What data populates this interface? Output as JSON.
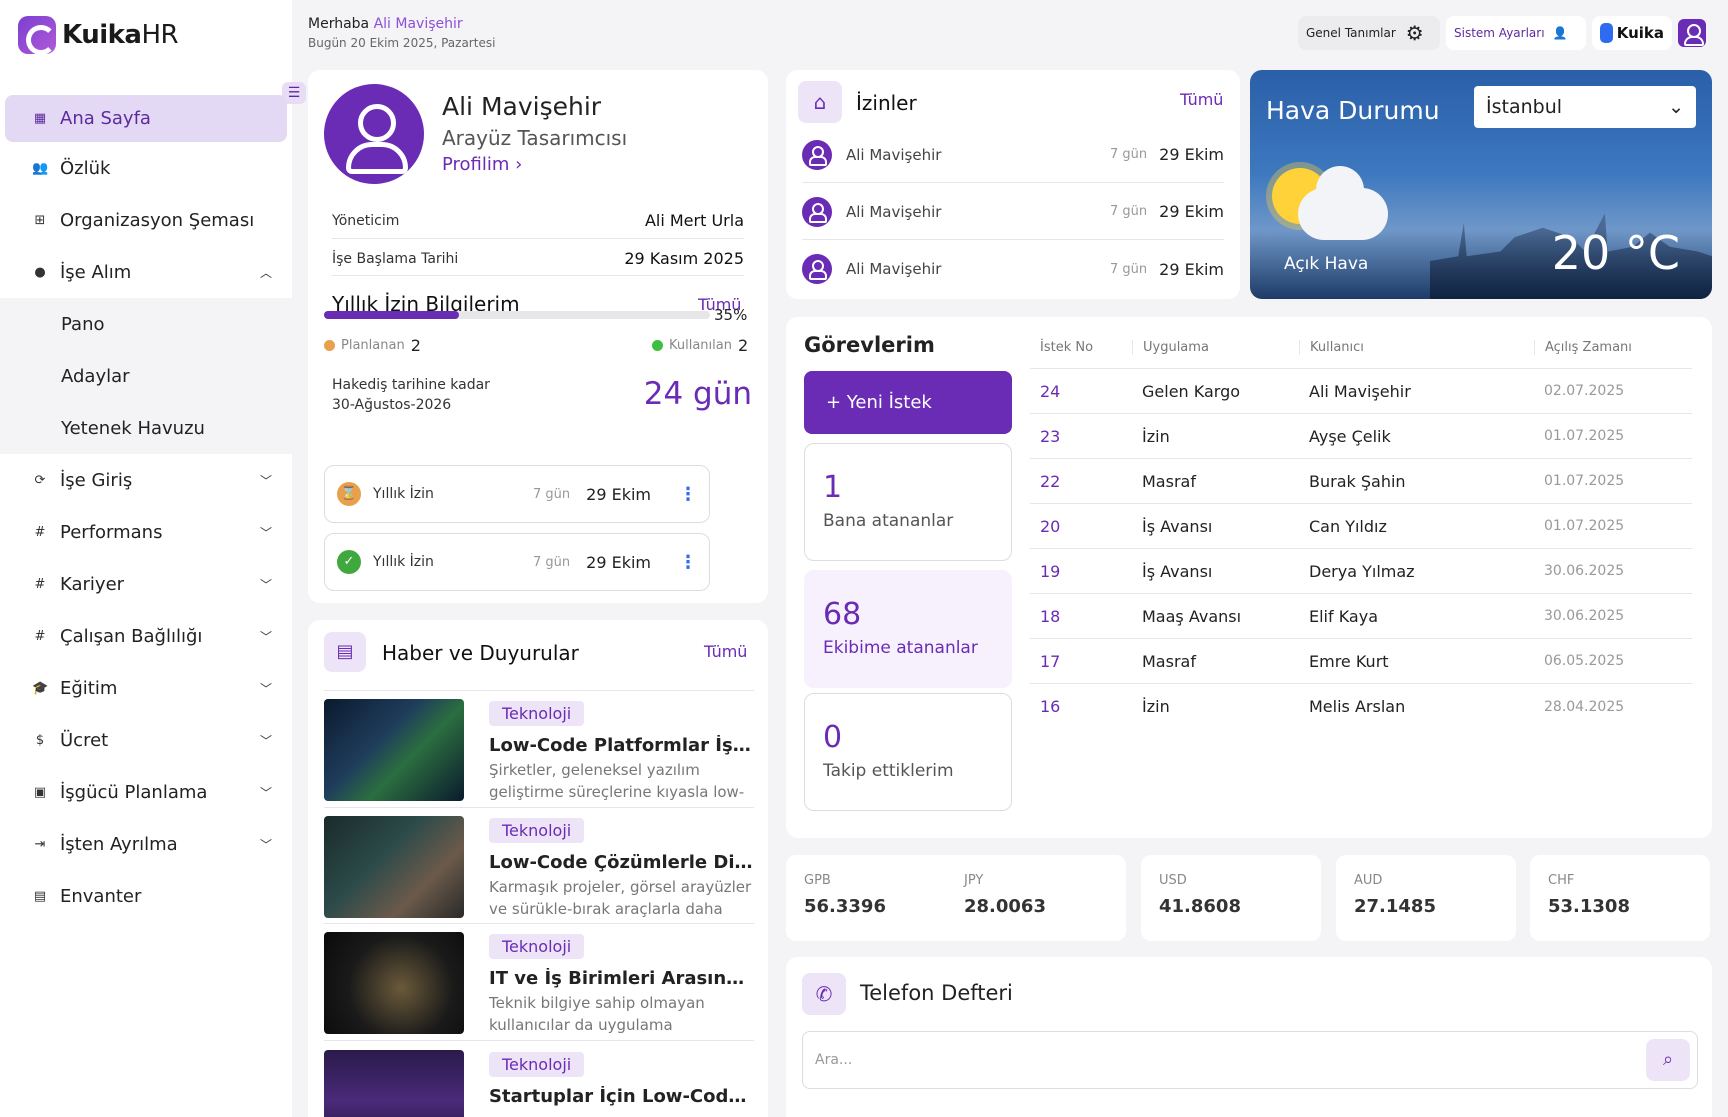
{
  "brand": {
    "name_bold": "Kuika",
    "name_light": "HR"
  },
  "header": {
    "greeting": "Merhaba",
    "user_name": "Ali Mavişehir",
    "date": "Bugün 20 Ekim 2025, Pazartesi",
    "general_definitions": "Genel Tanımlar",
    "system_settings": "Sistem Ayarları",
    "kuika": "Kuika"
  },
  "sidebar": {
    "items": [
      {
        "label": "Ana Sayfa",
        "icon": "grid-icon"
      },
      {
        "label": "Özlük",
        "icon": "people-icon"
      },
      {
        "label": "Organizasyon Şeması",
        "icon": "org-chart-icon"
      },
      {
        "label": "İşe Alım",
        "icon": "person-icon"
      },
      {
        "label": "İşe Giriş",
        "icon": "refresh-icon"
      },
      {
        "label": "Performans",
        "icon": "hash-icon"
      },
      {
        "label": "Kariyer",
        "icon": "hash-icon"
      },
      {
        "label": "Çalışan Bağlılığı",
        "icon": "hash-icon"
      },
      {
        "label": "Eğitim",
        "icon": "graduation-cap-icon"
      },
      {
        "label": "Ücret",
        "icon": "dollar-icon"
      },
      {
        "label": "İşgücü Planlama",
        "icon": "briefcase-icon"
      },
      {
        "label": "İşten Ayrılma",
        "icon": "exit-icon"
      },
      {
        "label": "Envanter",
        "icon": "archive-icon"
      }
    ],
    "sub_items": [
      "Pano",
      "Adaylar",
      "Yetenek Havuzu"
    ]
  },
  "profile": {
    "name": "Ali Mavişehir",
    "title": "Arayüz Tasarımcısı",
    "link": "Profilim ›",
    "manager_label": "Yöneticim",
    "manager_value": "Ali Mert Urla",
    "start_label": "İşe Başlama Tarihi",
    "start_value": "29 Kasım 2025",
    "annual_title": "Yıllık İzin Bilgilerim",
    "all": "Tümü",
    "progress": 35,
    "progress_text": "35%",
    "planned_label": "Planlanan",
    "planned_value": "2",
    "used_label": "Kullanılan",
    "used_value": "2",
    "accrual_line1": "Hakediş tarihine kadar",
    "accrual_line2": "30-Ağustos-2026",
    "accrual_value": "24 gün",
    "leaves": [
      {
        "label": "Yıllık İzin",
        "days": "7 gün",
        "date": "29 Ekim",
        "status": "pending"
      },
      {
        "label": "Yıllık İzin",
        "days": "7 gün",
        "date": "29 Ekim",
        "status": "approved"
      }
    ]
  },
  "news": {
    "title": "Haber ve Duyurular",
    "all": "Tümü",
    "items": [
      {
        "tag": "Teknoloji",
        "title": "Low-Code Platformlar İş Süreçlerini Nasıl Dönüştürüyor",
        "desc": "Şirketler, geleneksel yazılım geliştirme süreçlerine kıyasla low-code platformlarla daha hızlı ilerliyor."
      },
      {
        "tag": "Teknoloji",
        "title": "Low-Code Çözümlerle Dijital Dönüşüm",
        "desc": "Karmaşık projeler, görsel arayüzler ve sürükle-bırak araçlarla daha erişilebilir hale geliyor."
      },
      {
        "tag": "Teknoloji",
        "title": "IT ve İş Birimleri Arasında Köprü",
        "desc": "Teknik bilgiye sahip olmayan kullanıcılar da uygulama geliştirebiliyor."
      },
      {
        "tag": "Teknoloji",
        "title": "Startuplar İçin Low-Code Yaklaşımı",
        "desc": ""
      }
    ]
  },
  "leaves": {
    "title": "İzinler",
    "all": "Tümü",
    "items": [
      {
        "name": "Ali Mavişehir",
        "days": "7 gün",
        "date": "29 Ekim"
      },
      {
        "name": "Ali Mavişehir",
        "days": "7 gün",
        "date": "29 Ekim"
      },
      {
        "name": "Ali Mavişehir",
        "days": "7 gün",
        "date": "29 Ekim"
      }
    ]
  },
  "weather": {
    "title": "Hava Durumu",
    "city": "İstanbul",
    "condition": "Açık Hava",
    "temp": "20 °C"
  },
  "tasks": {
    "title": "Görevlerim",
    "new_request": "+ Yeni İstek",
    "boxes": [
      {
        "count": "1",
        "label": "Bana atananlar"
      },
      {
        "count": "68",
        "label": "Ekibime atananlar"
      },
      {
        "count": "0",
        "label": "Takip ettiklerim"
      }
    ],
    "columns": [
      "İstek No",
      "Uygulama",
      "Kullanıcı",
      "Açılış Zamanı"
    ],
    "rows": [
      [
        "24",
        "Gelen Kargo",
        "Ali Mavişehir",
        "02.07.2025"
      ],
      [
        "23",
        "İzin",
        "Ayşe Çelik",
        "01.07.2025"
      ],
      [
        "22",
        "Masraf",
        "Burak Şahin",
        "01.07.2025"
      ],
      [
        "20",
        "İş Avansı",
        "Can Yıldız",
        "01.07.2025"
      ],
      [
        "19",
        "İş Avansı",
        "Derya Yılmaz",
        "30.06.2025"
      ],
      [
        "18",
        "Maaş Avansı",
        "Elif Kaya",
        "30.06.2025"
      ],
      [
        "17",
        "Masraf",
        "Emre Kurt",
        "06.05.2025"
      ],
      [
        "16",
        "İzin",
        "Melis Arslan",
        "28.04.2025"
      ]
    ]
  },
  "currencies": [
    {
      "code": "GPB",
      "value": "56.3396"
    },
    {
      "code": "JPY",
      "value": "28.0063"
    },
    {
      "code": "USD",
      "value": "41.8608"
    },
    {
      "code": "AUD",
      "value": "27.1485"
    },
    {
      "code": "CHF",
      "value": "53.1308"
    }
  ],
  "phonebook": {
    "title": "Telefon Defteri",
    "placeholder": "Ara..."
  }
}
